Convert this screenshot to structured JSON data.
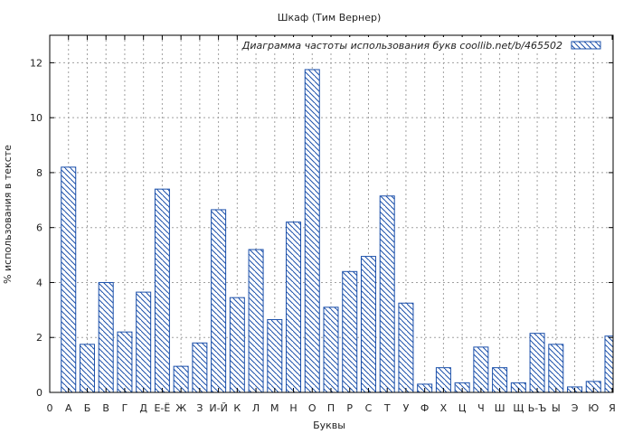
{
  "chart_data": {
    "type": "bar",
    "title": "Шкаф (Тим Вернер)",
    "xlabel": "Буквы",
    "ylabel": "% использования в тексте",
    "ylim": [
      0,
      13
    ],
    "yticks": [
      0,
      2,
      4,
      6,
      8,
      10,
      12
    ],
    "grid": true,
    "legend_position": "top-right",
    "series": [
      {
        "name": "Диаграмма частоты использования букв  coollib.net/b/465502",
        "values": [
          8.2,
          1.75,
          4.0,
          2.2,
          3.65,
          7.4,
          0.95,
          1.8,
          6.65,
          3.45,
          5.2,
          2.65,
          6.2,
          11.75,
          3.1,
          4.4,
          4.95,
          7.15,
          3.25,
          0.3,
          0.9,
          0.35,
          1.65,
          0.9,
          0.35,
          2.15,
          1.75,
          0.2,
          0.4,
          2.05
        ]
      }
    ],
    "x_ticks": [
      "0",
      "А",
      "Б",
      "В",
      "Г",
      "Д",
      "Е-Ё",
      "Ж",
      "З",
      "И-Й",
      "К",
      "Л",
      "М",
      "Н",
      "О",
      "П",
      "Р",
      "С",
      "Т",
      "У",
      "Ф",
      "Х",
      "Ц",
      "Ч",
      "Ш",
      "Щ",
      "Ь-Ъ",
      "Ы",
      "Э",
      "Ю",
      "Я"
    ],
    "colors": {
      "bar_stroke": "#1a4faa",
      "hatch": "#1a4faa",
      "grid": "#a0a0a0",
      "axis": "#000000"
    }
  }
}
